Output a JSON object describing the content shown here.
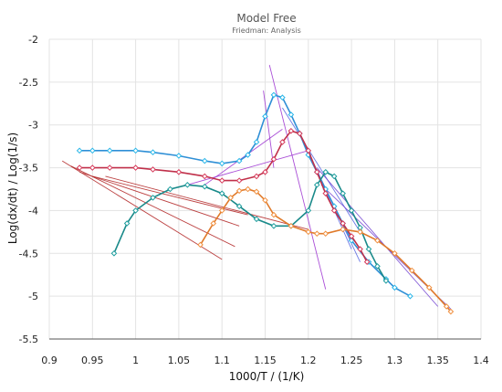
{
  "chart_data": {
    "type": "scatter",
    "title": "Model Free",
    "subtitle": "Friedman: Analysis",
    "xlabel": "1000/T / (1/K)",
    "ylabel": "Log(dx/dt) / Log(1/s)",
    "xlim": [
      0.9,
      1.4
    ],
    "ylim": [
      -5.5,
      -2
    ],
    "xticks": [
      0.9,
      0.95,
      1,
      1.05,
      1.1,
      1.15,
      1.2,
      1.25,
      1.3,
      1.35,
      1.4
    ],
    "xtick_labels": [
      "0.9",
      "0.95",
      "1",
      "1.05",
      "1.1",
      "1.15",
      "1.2",
      "1.25",
      "1.3",
      "1.35",
      "1.4"
    ],
    "yticks": [
      -2,
      -2.5,
      -3,
      -3.5,
      -4,
      -4.5,
      -5,
      -5.5
    ],
    "ytick_labels": [
      "-2",
      "-2.5",
      "-3",
      "-3.5",
      "-4",
      "-4.5",
      "-5",
      "-5.5"
    ],
    "grid": true,
    "legend": "none",
    "series": [
      {
        "color": "#2f8fd6",
        "marker_color": "#29b6e8",
        "x": [
          0.935,
          0.95,
          0.97,
          1.0,
          1.02,
          1.05,
          1.08,
          1.1,
          1.12,
          1.13,
          1.14,
          1.15,
          1.16,
          1.17,
          1.18,
          1.19,
          1.2,
          1.21,
          1.22,
          1.23,
          1.24,
          1.25,
          1.27,
          1.29,
          1.3,
          1.318
        ],
        "y": [
          -3.3,
          -3.3,
          -3.3,
          -3.3,
          -3.32,
          -3.36,
          -3.42,
          -3.45,
          -3.42,
          -3.35,
          -3.2,
          -2.9,
          -2.65,
          -2.68,
          -2.88,
          -3.1,
          -3.35,
          -3.55,
          -3.75,
          -3.95,
          -4.15,
          -4.35,
          -4.6,
          -4.8,
          -4.9,
          -5.0
        ]
      },
      {
        "color": "#c0304a",
        "marker_color": "#d63a5a",
        "x": [
          0.935,
          0.95,
          0.97,
          1.0,
          1.02,
          1.05,
          1.08,
          1.1,
          1.12,
          1.14,
          1.15,
          1.16,
          1.17,
          1.18,
          1.19,
          1.2,
          1.21,
          1.22,
          1.23,
          1.24,
          1.25,
          1.26,
          1.268
        ],
        "y": [
          -3.5,
          -3.5,
          -3.5,
          -3.5,
          -3.52,
          -3.55,
          -3.6,
          -3.65,
          -3.65,
          -3.6,
          -3.55,
          -3.4,
          -3.2,
          -3.07,
          -3.1,
          -3.3,
          -3.55,
          -3.8,
          -4.0,
          -4.15,
          -4.3,
          -4.45,
          -4.6
        ]
      },
      {
        "color": "#1a8a8a",
        "marker_color": "#1f9e9e",
        "x": [
          0.975,
          0.99,
          1.0,
          1.02,
          1.04,
          1.06,
          1.08,
          1.1,
          1.12,
          1.14,
          1.16,
          1.18,
          1.2,
          1.21,
          1.22,
          1.23,
          1.24,
          1.25,
          1.26,
          1.27,
          1.28,
          1.29
        ],
        "y": [
          -4.5,
          -4.15,
          -4.0,
          -3.85,
          -3.75,
          -3.7,
          -3.72,
          -3.8,
          -3.95,
          -4.1,
          -4.18,
          -4.18,
          -4.0,
          -3.7,
          -3.55,
          -3.6,
          -3.8,
          -4.0,
          -4.2,
          -4.45,
          -4.65,
          -4.82
        ]
      },
      {
        "color": "#e07a2a",
        "marker_color": "#f09040",
        "x": [
          1.075,
          1.09,
          1.1,
          1.11,
          1.12,
          1.13,
          1.14,
          1.15,
          1.16,
          1.18,
          1.2,
          1.21,
          1.22,
          1.24,
          1.26,
          1.28,
          1.3,
          1.32,
          1.34,
          1.36,
          1.365
        ],
        "y": [
          -4.4,
          -4.15,
          -4.0,
          -3.85,
          -3.77,
          -3.75,
          -3.78,
          -3.88,
          -4.05,
          -4.18,
          -4.25,
          -4.27,
          -4.27,
          -4.22,
          -4.25,
          -4.35,
          -4.5,
          -4.7,
          -4.9,
          -5.12,
          -5.18
        ]
      }
    ],
    "fit_lines": [
      {
        "color": "#b02020",
        "x": [
          0.915,
          1.1
        ],
        "y": [
          -3.42,
          -4.57
        ]
      },
      {
        "color": "#b02020",
        "x": [
          0.925,
          1.115
        ],
        "y": [
          -3.48,
          -4.42
        ]
      },
      {
        "color": "#b02020",
        "x": [
          0.935,
          1.12
        ],
        "y": [
          -3.55,
          -4.18
        ]
      },
      {
        "color": "#b02020",
        "x": [
          0.95,
          1.13
        ],
        "y": [
          -3.6,
          -4.05
        ]
      },
      {
        "color": "#b02020",
        "x": [
          0.965,
          1.2
        ],
        "y": [
          -3.6,
          -4.22
        ]
      },
      {
        "color": "#9b30d0",
        "x": [
          1.06,
          1.2
        ],
        "y": [
          -3.7,
          -3.3
        ]
      },
      {
        "color": "#9b30d0",
        "x": [
          1.08,
          1.17
        ],
        "y": [
          -3.7,
          -3.05
        ]
      },
      {
        "color": "#9b30d0",
        "x": [
          1.155,
          1.22
        ],
        "y": [
          -2.3,
          -4.92
        ]
      },
      {
        "color": "#9b30d0",
        "x": [
          1.148,
          1.16
        ],
        "y": [
          -2.6,
          -3.5
        ]
      },
      {
        "color": "#5060e0",
        "x": [
          1.17,
          1.26
        ],
        "y": [
          -2.8,
          -4.25
        ]
      },
      {
        "color": "#5060e0",
        "x": [
          1.19,
          1.26
        ],
        "y": [
          -3.1,
          -4.6
        ]
      },
      {
        "color": "#5060e0",
        "x": [
          1.195,
          1.25
        ],
        "y": [
          -3.2,
          -4.45
        ]
      },
      {
        "color": "#7040d0",
        "x": [
          1.21,
          1.35
        ],
        "y": [
          -3.5,
          -5.12
        ]
      },
      {
        "color": "#7040d0",
        "x": [
          1.215,
          1.365
        ],
        "y": [
          -3.7,
          -5.15
        ]
      }
    ]
  }
}
